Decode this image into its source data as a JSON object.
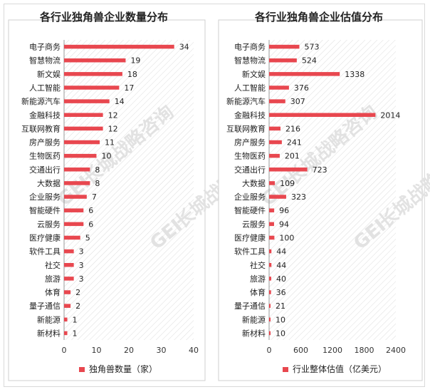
{
  "chart_data": [
    {
      "type": "bar",
      "orientation": "horizontal",
      "title": "各行业独角兽企业数量分布",
      "categories": [
        "电子商务",
        "智慧物流",
        "新文娱",
        "人工智能",
        "新能源汽车",
        "金融科技",
        "互联网教育",
        "房产服务",
        "生物医药",
        "交通出行",
        "大数据",
        "企业服务",
        "智能硬件",
        "云服务",
        "医疗健康",
        "软件工具",
        "社交",
        "旅游",
        "体育",
        "量子通信",
        "新能源",
        "新材料"
      ],
      "series": [
        {
          "name": "独角兽数量（家）",
          "values": [
            34,
            19,
            18,
            17,
            14,
            12,
            12,
            11,
            10,
            8,
            8,
            7,
            6,
            6,
            5,
            3,
            3,
            3,
            2,
            2,
            1,
            1
          ]
        }
      ],
      "xlim": [
        0,
        40
      ],
      "xticks": [
        0,
        10,
        20,
        30,
        40
      ],
      "grid": false,
      "legend": "bottom",
      "color": "#e8474f"
    },
    {
      "type": "bar",
      "orientation": "horizontal",
      "title": "各行业独角兽企业估值分布",
      "categories": [
        "电子商务",
        "智慧物流",
        "新文娱",
        "人工智能",
        "新能源汽车",
        "金融科技",
        "互联网教育",
        "房产服务",
        "生物医药",
        "交通出行",
        "大数据",
        "企业服务",
        "智能硬件",
        "云服务",
        "医疗健康",
        "软件工具",
        "社交",
        "旅游",
        "体育",
        "量子通信",
        "新能源",
        "新材料"
      ],
      "series": [
        {
          "name": "行业整体估值（亿美元）",
          "values": [
            573,
            524,
            1338,
            376,
            307,
            2014,
            216,
            241,
            201,
            723,
            109,
            323,
            96,
            94,
            100,
            44,
            44,
            40,
            36,
            21,
            10,
            10
          ]
        }
      ],
      "xlim": [
        0,
        2400
      ],
      "xticks": [
        0,
        600,
        1200,
        1800,
        2400
      ],
      "grid": false,
      "legend": "bottom",
      "color": "#e8474f"
    }
  ],
  "watermark": {
    "text_cn": "长城战略咨询",
    "text_en": "GEI"
  }
}
